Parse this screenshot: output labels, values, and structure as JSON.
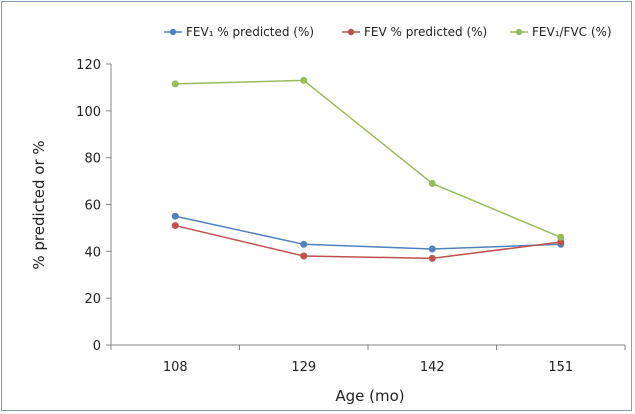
{
  "chart_data": {
    "type": "line",
    "categories": [
      "108",
      "129",
      "142",
      "151"
    ],
    "xlabel": "Age (mo)",
    "ylabel": "% predicted or %",
    "ylim": [
      0,
      120
    ],
    "yticks": [
      0,
      20,
      40,
      60,
      80,
      100,
      120
    ],
    "grid": false,
    "legend_position": "top",
    "series": [
      {
        "name": "FEV₁ % predicted (%)",
        "color": "#4f81bd",
        "values": [
          55,
          43,
          41,
          43
        ]
      },
      {
        "name": "FEV % predicted (%)",
        "color": "#c0504d",
        "values": [
          51,
          38,
          37,
          44
        ]
      },
      {
        "name": "FEV₁/FVC (%)",
        "color": "#9bbb59",
        "values": [
          111.5,
          113,
          69,
          46
        ]
      }
    ]
  }
}
